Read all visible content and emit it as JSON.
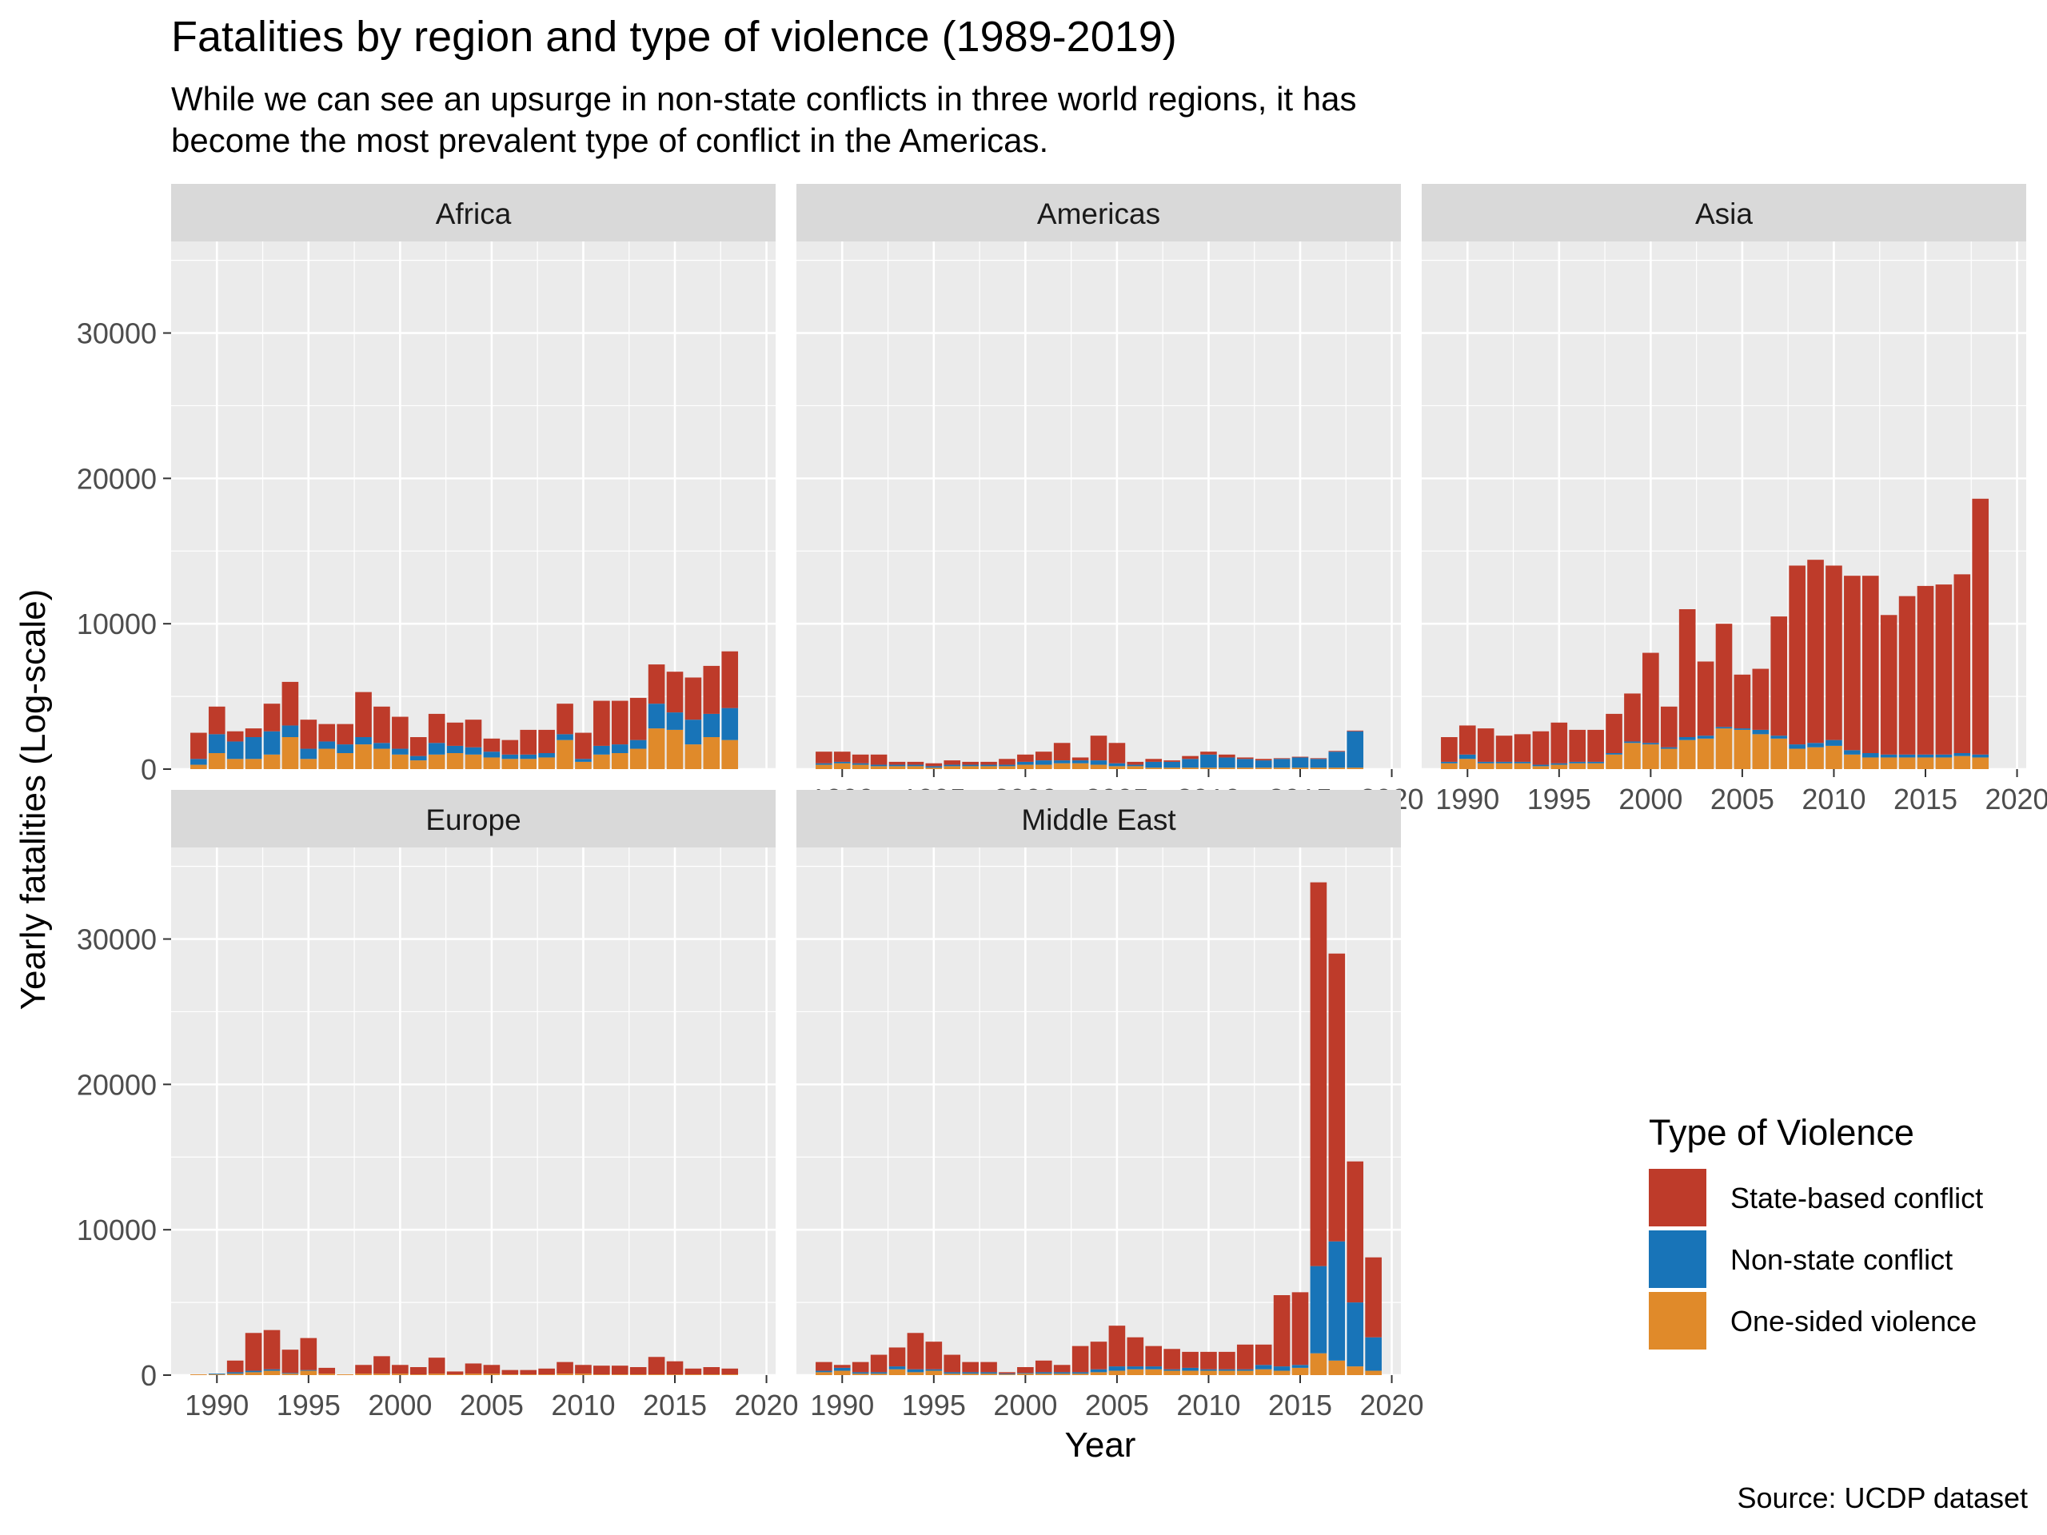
{
  "title": "Fatalities by region and type of violence (1989-2019)",
  "subtitle_lines": [
    "While we can see an upsurge in non-state conflicts in three world regions, it has",
    "become the most prevalent type of conflict in the Americas."
  ],
  "caption": "Source: UCDP dataset",
  "colors": {
    "state": "#BE3B2A",
    "nonstate": "#1874B8",
    "onesided": "#E08A2A",
    "panel_bg": "#EBEBEB",
    "strip_bg": "#D9D9D9",
    "grid": "#FFFFFF"
  },
  "chart_data": {
    "type": "bar",
    "stacked": true,
    "facet_layout": "3 columns x 2 rows, shared y axis",
    "x": [
      1989,
      1990,
      1991,
      1992,
      1993,
      1994,
      1995,
      1996,
      1997,
      1998,
      1999,
      2000,
      2001,
      2002,
      2003,
      2004,
      2005,
      2006,
      2007,
      2008,
      2009,
      2010,
      2011,
      2012,
      2013,
      2014,
      2015,
      2016,
      2017,
      2018,
      2019
    ],
    "xlabel": "Year",
    "ylabel": "Yearly fatalities (Log-scale)",
    "xticks": [
      1990,
      1995,
      2000,
      2005,
      2010,
      2015,
      2020
    ],
    "yticks": [
      0,
      10000,
      20000,
      30000
    ],
    "xlim": [
      1987.5,
      2020.5
    ],
    "ylim": [
      0,
      36300
    ],
    "grid": true,
    "legend": {
      "title": "Type of Violence",
      "position": "right-bottom",
      "entries": [
        "State-based conflict",
        "Non-state conflict",
        "One-sided violence"
      ]
    },
    "facets": [
      {
        "name": "Africa",
        "series": [
          {
            "name": "One-sided violence",
            "values": [
              300,
              1100,
              700,
              700,
              1000,
              2200,
              700,
              1400,
              1100,
              1700,
              1400,
              1000,
              600,
              1000,
              1100,
              1000,
              800,
              700,
              700,
              800,
              2000,
              500,
              1000,
              1100,
              1400,
              2800,
              2700,
              1700,
              2200,
              2000,
              null
            ]
          },
          {
            "name": "Non-state conflict",
            "values": [
              400,
              1300,
              1200,
              1500,
              1600,
              800,
              700,
              500,
              600,
              500,
              400,
              400,
              300,
              800,
              500,
              500,
              400,
              300,
              300,
              300,
              400,
              200,
              600,
              600,
              600,
              1700,
              1200,
              1700,
              1600,
              2200,
              null
            ]
          },
          {
            "name": "State-based conflict",
            "values": [
              1800,
              1900,
              700,
              600,
              1900,
              3000,
              2000,
              1200,
              1400,
              3100,
              2500,
              2200,
              1300,
              2000,
              1600,
              1900,
              900,
              1000,
              1700,
              1600,
              2100,
              1800,
              3100,
              3000,
              2900,
              2700,
              2800,
              2900,
              3300,
              3900,
              null
            ]
          }
        ]
      },
      {
        "name": "Americas",
        "series": [
          {
            "name": "One-sided violence",
            "values": [
              300,
              400,
              300,
              200,
              200,
              200,
              100,
              200,
              200,
              200,
              200,
              300,
              300,
              400,
              400,
              300,
              200,
              200,
              100,
              100,
              100,
              100,
              100,
              100,
              100,
              100,
              100,
              100,
              100,
              100,
              null
            ]
          },
          {
            "name": "Non-state conflict",
            "values": [
              100,
              100,
              100,
              100,
              100,
              100,
              100,
              100,
              100,
              100,
              100,
              200,
              300,
              200,
              200,
              300,
              200,
              100,
              400,
              400,
              600,
              900,
              700,
              600,
              500,
              600,
              700,
              600,
              1100,
              2500,
              null
            ]
          },
          {
            "name": "State-based conflict",
            "values": [
              800,
              700,
              600,
              700,
              200,
              200,
              200,
              300,
              200,
              200,
              400,
              500,
              600,
              1200,
              200,
              1700,
              1400,
              200,
              200,
              100,
              200,
              200,
              200,
              100,
              100,
              50,
              50,
              50,
              50,
              50,
              null
            ]
          }
        ]
      },
      {
        "name": "Asia",
        "series": [
          {
            "name": "One-sided violence",
            "values": [
              400,
              700,
              400,
              400,
              400,
              200,
              300,
              400,
              400,
              1000,
              1800,
              1700,
              1400,
              2000,
              2100,
              2800,
              2700,
              2400,
              2100,
              1400,
              1500,
              1600,
              1000,
              800,
              800,
              800,
              800,
              800,
              900,
              800,
              null
            ]
          },
          {
            "name": "Non-state conflict",
            "values": [
              100,
              300,
              100,
              100,
              100,
              100,
              100,
              100,
              100,
              100,
              100,
              100,
              100,
              200,
              200,
              100,
              100,
              300,
              200,
              300,
              300,
              400,
              300,
              300,
              200,
              200,
              200,
              200,
              200,
              200,
              null
            ]
          },
          {
            "name": "State-based conflict",
            "values": [
              1700,
              2000,
              2300,
              1800,
              1900,
              2300,
              2800,
              2200,
              2200,
              2700,
              3300,
              6200,
              2800,
              8800,
              5100,
              7100,
              3700,
              4200,
              8200,
              12300,
              12600,
              12000,
              12000,
              12200,
              9600,
              10900,
              11600,
              11700,
              12300,
              17600,
              null
            ]
          }
        ]
      },
      {
        "name": "Europe",
        "series": [
          {
            "name": "One-sided violence",
            "values": [
              50,
              50,
              100,
              200,
              300,
              100,
              300,
              100,
              50,
              100,
              100,
              100,
              50,
              100,
              50,
              100,
              100,
              50,
              50,
              50,
              100,
              100,
              50,
              50,
              50,
              50,
              50,
              50,
              50,
              50,
              null
            ]
          },
          {
            "name": "Non-state conflict",
            "values": [
              0,
              50,
              100,
              100,
              100,
              50,
              50,
              0,
              0,
              0,
              0,
              0,
              0,
              0,
              0,
              0,
              0,
              0,
              0,
              0,
              0,
              0,
              0,
              0,
              0,
              0,
              0,
              0,
              0,
              0,
              null
            ]
          },
          {
            "name": "State-based conflict",
            "values": [
              0,
              0,
              800,
              2600,
              2700,
              1600,
              2200,
              400,
              0,
              600,
              1200,
              600,
              500,
              1100,
              200,
              700,
              600,
              300,
              300,
              400,
              800,
              600,
              600,
              600,
              500,
              1200,
              900,
              400,
              500,
              400,
              null
            ]
          }
        ]
      },
      {
        "name": "Middle East",
        "series": [
          {
            "name": "One-sided violence",
            "values": [
              200,
              300,
              100,
              100,
              400,
              200,
              300,
              100,
              100,
              100,
              50,
              100,
              100,
              100,
              100,
              200,
              300,
              400,
              400,
              300,
              300,
              300,
              300,
              300,
              400,
              300,
              500,
              1500,
              1000,
              600,
              300
            ]
          },
          {
            "name": "Non-state conflict",
            "values": [
              100,
              200,
              100,
              100,
              200,
              200,
              100,
              100,
              100,
              100,
              50,
              50,
              100,
              100,
              100,
              200,
              300,
              200,
              200,
              100,
              200,
              100,
              100,
              100,
              300,
              300,
              200,
              6000,
              8200,
              4400,
              2300
            ]
          },
          {
            "name": "State-based conflict",
            "values": [
              600,
              200,
              700,
              1200,
              1300,
              2500,
              1900,
              1200,
              700,
              700,
              100,
              400,
              800,
              500,
              1800,
              1900,
              2800,
              2000,
              1400,
              1400,
              1100,
              1200,
              1200,
              1700,
              1400,
              4900,
              5000,
              26400,
              19800,
              9700,
              5500
            ]
          }
        ]
      }
    ]
  }
}
